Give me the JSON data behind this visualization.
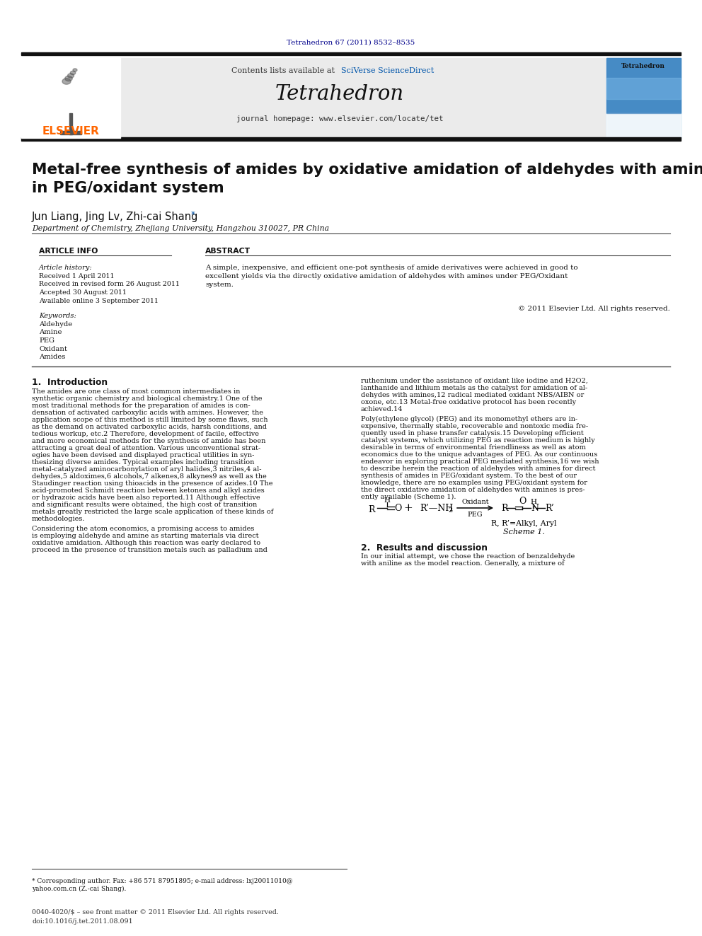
{
  "page_title_citation": "Tetrahedron 67 (2011) 8532–8535",
  "journal_name": "Tetrahedron",
  "contents_text": "Contents lists available at",
  "sciverse_text": "SciVerse ScienceDirect",
  "homepage_text": "journal homepage: www.elsevier.com/locate/tet",
  "elsevier_color": "#FF6600",
  "navy_color": "#00008B",
  "blue_link_color": "#0055AA",
  "article_title": "Metal-free synthesis of amides by oxidative amidation of aldehydes with amines\nin PEG/oxidant system",
  "authors": "Jun Liang, Jing Lv, Zhi-cai Shang",
  "affiliation": "Department of Chemistry, Zhejiang University, Hangzhou 310027, PR China",
  "article_info_label": "ARTICLE INFO",
  "abstract_label": "ABSTRACT",
  "article_history_label": "Article history:",
  "received1": "Received 1 April 2011",
  "received2": "Received in revised form 26 August 2011",
  "accepted": "Accepted 30 August 2011",
  "available": "Available online 3 September 2011",
  "keywords_label": "Keywords:",
  "keywords": [
    "Aldehyde",
    "Amine",
    "PEG",
    "Oxidant",
    "Amides"
  ],
  "abstract_text": "A simple, inexpensive, and efficient one-pot synthesis of amide derivatives were achieved in good to\nexcellent yields via the directly oxidative amidation of aldehydes with amines under PEG/Oxidant\nsystem.",
  "copyright_text": "© 2011 Elsevier Ltd. All rights reserved.",
  "intro_heading": "1.  Introduction",
  "intro_text1_lines": [
    "The amides are one class of most common intermediates in",
    "synthetic organic chemistry and biological chemistry.1 One of the",
    "most traditional methods for the preparation of amides is con-",
    "densation of activated carboxylic acids with amines. However, the",
    "application scope of this method is still limited by some flaws, such",
    "as the demand on activated carboxylic acids, harsh conditions, and",
    "tedious workup, etc.2 Therefore, development of facile, effective",
    "and more economical methods for the synthesis of amide has been",
    "attracting a great deal of attention. Various unconventional strat-",
    "egies have been devised and displayed practical utilities in syn-",
    "thesizing diverse amides. Typical examples including transition",
    "metal-catalyzed aminocarbonylation of aryl halides,3 nitriles,4 al-",
    "dehydes,5 aldoximes,6 alcohols,7 alkenes,8 alkynes9 as well as the",
    "Staudinger reaction using thioacids in the presence of azides.10 The",
    "acid-promoted Schmidt reaction between ketones and alkyl azides",
    "or hydrazoic acids have been also reported.11 Although effective",
    "and significant results were obtained, the high cost of transition",
    "metals greatly restricted the large scale application of these kinds of",
    "methodologies."
  ],
  "intro_text2_lines": [
    "Considering the atom economics, a promising access to amides",
    "is employing aldehyde and amine as starting materials via direct",
    "oxidative amidation. Although this reaction was early declared to",
    "proceed in the presence of transition metals such as palladium and"
  ],
  "right_col_text1_lines": [
    "ruthenium under the assistance of oxidant like iodine and H2O2,",
    "lanthanide and lithium metals as the catalyst for amidation of al-",
    "dehydes with amines,12 radical mediated oxidant NBS/AIBN or",
    "oxone, etc.13 Metal-free oxidative protocol has been recently",
    "achieved.14"
  ],
  "right_col_text2_lines": [
    "Poly(ethylene glycol) (PEG) and its monomethyl ethers are in-",
    "expensive, thermally stable, recoverable and nontoxic media fre-",
    "quently used in phase transfer catalysis.15 Developing efficient",
    "catalyst systems, which utilizing PEG as reaction medium is highly",
    "desirable in terms of environmental friendliness as well as atom",
    "economics due to the unique advantages of PEG. As our continuous",
    "endeavor in exploring practical PEG mediated synthesis,16 we wish",
    "to describe herein the reaction of aldehydes with amines for direct",
    "synthesis of amides in PEG/oxidant system. To the best of our",
    "knowledge, there are no examples using PEG/oxidant system for",
    "the direct oxidative amidation of aldehydes with amines is pres-",
    "ently available (Scheme 1)."
  ],
  "scheme_caption": "Scheme 1.",
  "rr_label": "R, R’=Alkyl, Aryl",
  "results_heading": "2.  Results and discussion",
  "results_text_lines": [
    "In our initial attempt, we chose the reaction of benzaldehyde",
    "with aniline as the model reaction. Generally, a mixture of"
  ],
  "footnote_text_lines": [
    "* Corresponding author. Fax: +86 571 87951895; e-mail address: lxj20011010@",
    "yahoo.com.cn (Z.-cai Shang)."
  ],
  "footer_text1": "0040-4020/$ – see front matter © 2011 Elsevier Ltd. All rights reserved.",
  "footer_text2": "doi:10.1016/j.tet.2011.08.091",
  "bg_color": "#FFFFFF",
  "dark_bar_color": "#111111"
}
